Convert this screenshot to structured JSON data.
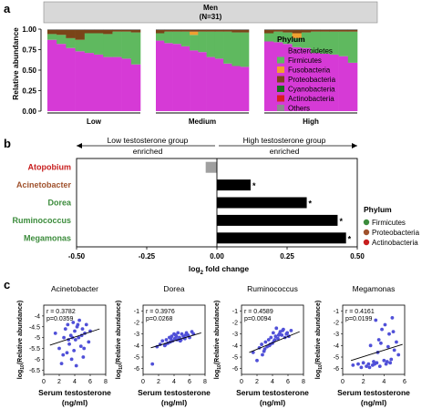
{
  "panel_labels": {
    "a": "a",
    "b": "b",
    "c": "c"
  },
  "chart_data": [
    {
      "type": "bar",
      "subtype": "stacked-100",
      "panel": "a",
      "header_line1": "Men",
      "header_line2": "(N=31)",
      "ylabel": "Relative abundance",
      "ylim": [
        0,
        1
      ],
      "yticks": [
        "0.00",
        "0.25",
        "0.50",
        "0.75",
        "1.00"
      ],
      "groups": [
        "Low",
        "Medium",
        "High"
      ],
      "legend_title": "Phylum",
      "series": [
        {
          "name": "Bacteroidetes",
          "color": "#d63ad6"
        },
        {
          "name": "Firmicutes",
          "color": "#5fb95f"
        },
        {
          "name": "Fusobacteria",
          "color": "#f0a030"
        },
        {
          "name": "Proteobacteria",
          "color": "#7a4418"
        },
        {
          "name": "Cyanobacteria",
          "color": "#1a6b1a"
        },
        {
          "name": "Actinobacteria",
          "color": "#d81f1f"
        },
        {
          "name": "Others",
          "color": "#8c8c8c"
        }
      ],
      "samples": [
        {
          "group": 0,
          "values": [
            0.87,
            0.07,
            0.0,
            0.05,
            0.0,
            0.0,
            0.01
          ]
        },
        {
          "group": 0,
          "values": [
            0.82,
            0.11,
            0.0,
            0.06,
            0.0,
            0.0,
            0.01
          ]
        },
        {
          "group": 0,
          "values": [
            0.77,
            0.12,
            0.0,
            0.1,
            0.0,
            0.0,
            0.01
          ]
        },
        {
          "group": 0,
          "values": [
            0.73,
            0.14,
            0.0,
            0.12,
            0.0,
            0.0,
            0.01
          ]
        },
        {
          "group": 0,
          "values": [
            0.71,
            0.24,
            0.0,
            0.04,
            0.0,
            0.0,
            0.01
          ]
        },
        {
          "group": 0,
          "values": [
            0.69,
            0.26,
            0.0,
            0.04,
            0.0,
            0.0,
            0.01
          ]
        },
        {
          "group": 0,
          "values": [
            0.66,
            0.28,
            0.0,
            0.05,
            0.0,
            0.0,
            0.01
          ]
        },
        {
          "group": 0,
          "values": [
            0.66,
            0.31,
            0.0,
            0.02,
            0.0,
            0.0,
            0.01
          ]
        },
        {
          "group": 0,
          "values": [
            0.64,
            0.33,
            0.0,
            0.02,
            0.0,
            0.0,
            0.01
          ]
        },
        {
          "group": 0,
          "values": [
            0.57,
            0.39,
            0.0,
            0.03,
            0.0,
            0.0,
            0.01
          ]
        },
        {
          "group": 1,
          "values": [
            0.86,
            0.09,
            0.0,
            0.04,
            0.0,
            0.0,
            0.01
          ]
        },
        {
          "group": 1,
          "values": [
            0.83,
            0.14,
            0.0,
            0.02,
            0.0,
            0.0,
            0.01
          ]
        },
        {
          "group": 1,
          "values": [
            0.82,
            0.15,
            0.0,
            0.02,
            0.0,
            0.0,
            0.01
          ]
        },
        {
          "group": 1,
          "values": [
            0.79,
            0.18,
            0.0,
            0.02,
            0.0,
            0.0,
            0.01
          ]
        },
        {
          "group": 1,
          "values": [
            0.74,
            0.19,
            0.04,
            0.02,
            0.0,
            0.0,
            0.01
          ]
        },
        {
          "group": 1,
          "values": [
            0.72,
            0.25,
            0.0,
            0.02,
            0.0,
            0.0,
            0.01
          ]
        },
        {
          "group": 1,
          "values": [
            0.66,
            0.31,
            0.0,
            0.02,
            0.0,
            0.0,
            0.01
          ]
        },
        {
          "group": 1,
          "values": [
            0.64,
            0.33,
            0.0,
            0.02,
            0.0,
            0.0,
            0.01
          ]
        },
        {
          "group": 1,
          "values": [
            0.58,
            0.39,
            0.0,
            0.02,
            0.0,
            0.0,
            0.01
          ]
        },
        {
          "group": 1,
          "values": [
            0.55,
            0.41,
            0.0,
            0.03,
            0.0,
            0.0,
            0.01
          ]
        },
        {
          "group": 1,
          "values": [
            0.54,
            0.42,
            0.0,
            0.03,
            0.0,
            0.0,
            0.01
          ]
        },
        {
          "group": 2,
          "values": [
            0.85,
            0.1,
            0.0,
            0.04,
            0.0,
            0.0,
            0.01
          ]
        },
        {
          "group": 2,
          "values": [
            0.84,
            0.13,
            0.0,
            0.02,
            0.0,
            0.0,
            0.01
          ]
        },
        {
          "group": 2,
          "values": [
            0.82,
            0.14,
            0.0,
            0.03,
            0.0,
            0.0,
            0.01
          ]
        },
        {
          "group": 2,
          "values": [
            0.78,
            0.11,
            0.06,
            0.04,
            0.0,
            0.0,
            0.01
          ]
        },
        {
          "group": 2,
          "values": [
            0.77,
            0.19,
            0.0,
            0.03,
            0.0,
            0.0,
            0.01
          ]
        },
        {
          "group": 2,
          "values": [
            0.71,
            0.26,
            0.0,
            0.02,
            0.0,
            0.0,
            0.01
          ]
        },
        {
          "group": 2,
          "values": [
            0.7,
            0.27,
            0.0,
            0.02,
            0.0,
            0.0,
            0.01
          ]
        },
        {
          "group": 2,
          "values": [
            0.69,
            0.28,
            0.0,
            0.02,
            0.0,
            0.0,
            0.01
          ]
        },
        {
          "group": 2,
          "values": [
            0.67,
            0.3,
            0.0,
            0.02,
            0.0,
            0.0,
            0.01
          ]
        },
        {
          "group": 2,
          "values": [
            0.59,
            0.38,
            0.0,
            0.02,
            0.0,
            0.0,
            0.01
          ]
        }
      ]
    },
    {
      "type": "bar",
      "subtype": "horizontal",
      "panel": "b",
      "low_label_line1": "Low testosterone group",
      "low_label_line2": "enriched",
      "high_label_line1": "High testosterone group",
      "high_label_line2": "enriched",
      "xlabel_main": "log",
      "xlabel_sub": "2",
      "xlabel_rest": " fold change",
      "xlim": [
        -0.5,
        0.5
      ],
      "xticks": [
        "-0.50",
        "-0.25",
        "0.00",
        "0.25",
        "0.50"
      ],
      "categories": [
        "Atopobium",
        "Acinetobacter",
        "Dorea",
        "Ruminococcus",
        "Megamonas"
      ],
      "category_colors": [
        "#c81e1e",
        "#a0522d",
        "#3c8c3c",
        "#3c8c3c",
        "#3c8c3c"
      ],
      "values": [
        -0.04,
        0.12,
        0.32,
        0.43,
        0.46
      ],
      "bar_colors": [
        "#a0a0a0",
        "#000000",
        "#000000",
        "#000000",
        "#000000"
      ],
      "significance": [
        "",
        "*",
        "*",
        "*",
        "*"
      ],
      "legend_title": "Phylum",
      "legend": [
        {
          "name": "Firmicutes",
          "color": "#3c8c3c"
        },
        {
          "name": "Proteobacteria",
          "color": "#a0522d"
        },
        {
          "name": "Actinobacteria",
          "color": "#c81e1e"
        }
      ]
    },
    {
      "type": "scatter",
      "panel": "c",
      "ylabel_pre": "log",
      "ylabel_sub": "10",
      "ylabel_post": "(Relative abundance)",
      "xlabel_line1": "Serum testosterone",
      "xlabel_line2": "(ng/ml)",
      "point_color": "#5050d8",
      "plots": [
        {
          "title": "Acinetobacter",
          "r_text": "r = 0.3782",
          "p_text": "p=0.0359",
          "xlim": [
            0,
            8
          ],
          "xticks": [
            "0",
            "2",
            "4",
            "6",
            "8"
          ],
          "ylim": [
            -6.7,
            -3.5
          ],
          "yticks": [
            "-4",
            "-4.5",
            "-5",
            "-5.5",
            "-6",
            "-6.5"
          ],
          "ytick_values": [
            -4,
            -4.5,
            -5,
            -5.5,
            -6,
            -6.5
          ],
          "fit": [
            [
              0.8,
              -5.35
            ],
            [
              7.2,
              -4.6
            ]
          ],
          "x": [
            1.5,
            2.0,
            2.3,
            2.6,
            2.8,
            3.0,
            3.1,
            3.3,
            3.5,
            3.6,
            3.8,
            3.9,
            4.0,
            4.1,
            4.2,
            4.3,
            4.5,
            4.6,
            4.8,
            5.0,
            5.1,
            5.3,
            5.5,
            5.8,
            6.0,
            3.2,
            2.5,
            4.4,
            3.7,
            5.2,
            4.9
          ],
          "y": [
            -4.8,
            -5.5,
            -6.2,
            -5.0,
            -4.6,
            -5.7,
            -4.4,
            -5.3,
            -4.9,
            -6.0,
            -4.3,
            -5.6,
            -4.7,
            -5.1,
            -6.3,
            -4.5,
            -5.0,
            -4.2,
            -5.4,
            -4.6,
            -5.9,
            -4.8,
            -4.4,
            -5.2,
            -4.7,
            -5.1,
            -5.8,
            -4.4,
            -5.0,
            -5.5,
            -4.9
          ]
        },
        {
          "title": "Dorea",
          "r_text": "r = 0.3976",
          "p_text": "p=0.0268",
          "xlim": [
            0,
            8
          ],
          "xticks": [
            "0",
            "2",
            "4",
            "6",
            "8"
          ],
          "ylim": [
            -6.5,
            -0.5
          ],
          "yticks": [
            "-1",
            "-2",
            "-3",
            "-4",
            "-5",
            "-6"
          ],
          "ytick_values": [
            -1,
            -2,
            -3,
            -4,
            -5,
            -6
          ],
          "fit": [
            [
              1.0,
              -4.2
            ],
            [
              7.5,
              -2.9
            ]
          ],
          "x": [
            1.2,
            1.8,
            2.2,
            2.5,
            2.8,
            3.0,
            3.2,
            3.4,
            3.5,
            3.7,
            3.8,
            4.0,
            4.1,
            4.2,
            4.4,
            4.5,
            4.7,
            4.8,
            5.0,
            5.2,
            5.4,
            5.6,
            5.8,
            6.0,
            6.3,
            6.5,
            2.9,
            3.6,
            4.3,
            4.9,
            5.5
          ],
          "y": [
            -5.6,
            -4.1,
            -3.9,
            -3.6,
            -4.0,
            -3.5,
            -3.8,
            -3.3,
            -3.7,
            -3.2,
            -3.6,
            -3.0,
            -3.4,
            -3.1,
            -3.5,
            -2.9,
            -3.3,
            -3.6,
            -3.0,
            -3.2,
            -3.4,
            -2.9,
            -3.1,
            -3.3,
            -2.8,
            -3.0,
            -3.9,
            -3.4,
            -3.2,
            -3.5,
            -3.1
          ]
        },
        {
          "title": "Ruminococcus",
          "r_text": "r = 0.4589",
          "p_text": "p=0.0094",
          "xlim": [
            0,
            8
          ],
          "xticks": [
            "0",
            "2",
            "4",
            "6",
            "8"
          ],
          "ylim": [
            -6.5,
            -0.5
          ],
          "yticks": [
            "-1",
            "-2",
            "-3",
            "-4",
            "-5",
            "-6"
          ],
          "ytick_values": [
            -1,
            -2,
            -3,
            -4,
            -5,
            -6
          ],
          "fit": [
            [
              1.0,
              -4.6
            ],
            [
              7.5,
              -2.8
            ]
          ],
          "x": [
            1.5,
            2.0,
            2.3,
            2.6,
            2.9,
            3.1,
            3.3,
            3.5,
            3.6,
            3.8,
            4.0,
            4.1,
            4.2,
            4.4,
            4.5,
            4.7,
            4.9,
            5.0,
            5.2,
            5.4,
            5.6,
            5.9,
            6.1,
            6.4,
            3.0,
            3.7,
            4.3,
            4.8,
            5.3,
            2.7,
            5.8
          ],
          "y": [
            -4.6,
            -5.3,
            -4.2,
            -3.9,
            -4.5,
            -3.7,
            -4.1,
            -3.5,
            -4.0,
            -3.3,
            -3.8,
            -2.9,
            -3.6,
            -3.2,
            -2.5,
            -3.4,
            -3.0,
            -2.8,
            -3.1,
            -2.6,
            -3.3,
            -2.9,
            -3.2,
            -2.7,
            -4.3,
            -3.9,
            -3.5,
            -3.1,
            -2.7,
            -4.8,
            -3.0
          ]
        },
        {
          "title": "Megamonas",
          "r_text": "r = 0.4161",
          "p_text": "p=0.0199",
          "xlim": [
            0,
            6
          ],
          "xticks": [
            "0",
            "2",
            "4",
            "6"
          ],
          "ylim": [
            -6.5,
            -0.5
          ],
          "yticks": [
            "-1",
            "-2",
            "-3",
            "-4",
            "-5",
            "-6"
          ],
          "ytick_values": [
            -1,
            -2,
            -3,
            -4,
            -5,
            -6
          ],
          "fit": [
            [
              0.8,
              -5.3
            ],
            [
              5.8,
              -3.9
            ]
          ],
          "x": [
            1.0,
            1.5,
            1.8,
            2.0,
            2.3,
            2.5,
            2.7,
            2.9,
            3.0,
            3.2,
            3.3,
            3.5,
            3.6,
            3.8,
            4.0,
            4.1,
            4.2,
            4.4,
            4.5,
            4.7,
            4.8,
            5.0,
            5.2,
            5.4,
            2.6,
            3.1,
            3.7,
            4.3,
            4.9,
            3.4,
            4.6
          ],
          "y": [
            -5.7,
            -5.6,
            -5.9,
            -5.5,
            -5.8,
            -5.6,
            -4.0,
            -5.7,
            -5.4,
            -1.8,
            -5.5,
            -3.5,
            -5.8,
            -2.6,
            -5.3,
            -2.2,
            -5.6,
            -4.1,
            -3.0,
            -5.2,
            -1.6,
            -4.4,
            -3.7,
            -4.8,
            -5.9,
            -5.6,
            -3.8,
            -5.4,
            -2.8,
            -4.6,
            -5.5
          ]
        }
      ]
    }
  ]
}
